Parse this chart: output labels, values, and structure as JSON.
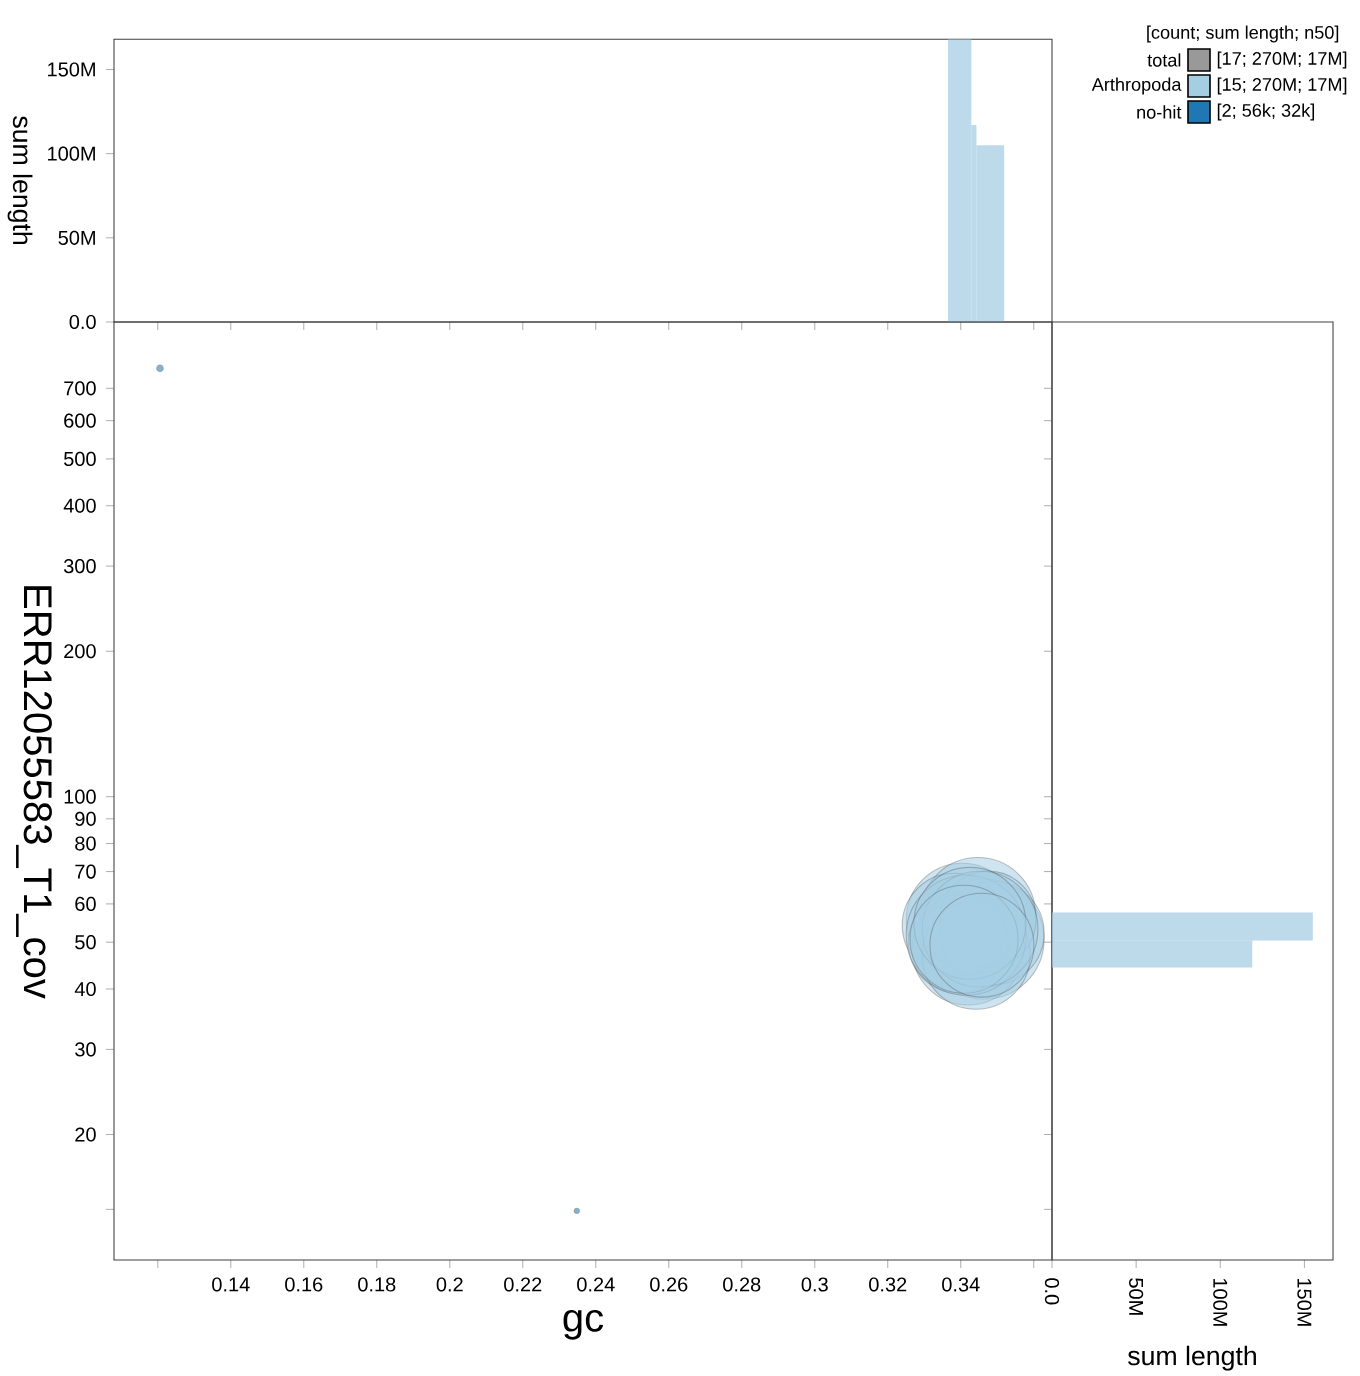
{
  "chart_data": [
    {
      "type": "histogram",
      "ylabel": "sum length",
      "bins": [
        0.3365,
        0.3429,
        0.3443,
        0.3519
      ],
      "values": [
        168000000,
        117000000,
        105000000
      ],
      "color": "#a6cee3",
      "xlim": [
        0.108,
        0.365
      ],
      "xticks": [
        0.12,
        0.14,
        0.16,
        0.18,
        0.2,
        0.22,
        0.24,
        0.26,
        0.28,
        0.3,
        0.32,
        0.34,
        0.36
      ],
      "ylim": [
        0,
        168000000
      ],
      "yticks": [
        {
          "value": 0,
          "label": "0.0"
        },
        {
          "value": 50000000,
          "label": "50M"
        },
        {
          "value": 100000000,
          "label": "100M"
        },
        {
          "value": 150000000,
          "label": "150M"
        }
      ],
      "tick_labels": "y"
    },
    {
      "type": "bubble",
      "xlabel": "gc",
      "ylabel": "ERR12055583_T1_cov",
      "log": true,
      "legend": "top right",
      "legend_title": "[count; sum length; n50]",
      "annotations": [
        "[17; 270M; 17M]",
        "[15; 270M; 17M]",
        "[2; 56k; 32k]"
      ],
      "xlim": [
        0.108,
        0.365
      ],
      "xticks": [
        {
          "value": 0.12,
          "label": null
        },
        0.14,
        0.16,
        0.18,
        0.2,
        0.22,
        0.24,
        0.26,
        0.28,
        0.3,
        0.32,
        0.34,
        {
          "value": 0.36,
          "label": null
        }
      ],
      "ylim": [
        11,
        960
      ],
      "yticks": [
        {
          "value": 14,
          "label": null
        },
        20,
        30,
        40,
        50,
        60,
        70,
        80,
        90,
        100,
        200,
        300,
        400,
        500,
        600,
        700
      ],
      "series": [
        {
          "name": "total",
          "color": "#999999"
        },
        {
          "name": "Arthropoda",
          "color": "#a6cee3",
          "x": [
            0.3404,
            0.3447,
            0.3382,
            0.3464,
            0.342,
            0.3486,
            0.3393,
            0.3442,
            0.3475,
            0.3415,
            0.3453,
            0.3425,
            0.3409,
            0.3458
          ],
          "values": [
            55.8,
            56.8,
            54.2,
            50.7,
            48.4,
            52.2,
            49.8,
            47.0,
            55.8,
            51.7,
            53.2,
            54.7,
            50.7,
            49.3
          ],
          "sizes": [
            0.87,
            0.93,
            0.75,
            1,
            0.87,
            0.75,
            0.69,
            0.81,
            0.64,
            1,
            0.93,
            0.87,
            0.81,
            0.75
          ]
        },
        {
          "name": "no-hit",
          "color": "#1f78b4",
          "x": [
            0.1206,
            0.2348
          ],
          "values": [
            770,
            13.9
          ],
          "sizes": [
            0.003,
            0.002
          ]
        }
      ]
    },
    {
      "type": "histogram",
      "orientation": "horizontal",
      "xlabel": "sum length",
      "log": "y",
      "bins": [
        44.3,
        50.4,
        57.6
      ],
      "values": [
        119000000,
        155000000
      ],
      "color": "#a6cee3",
      "xlim": [
        0,
        167000000
      ],
      "xticks": [
        {
          "value": 0,
          "label": "0.0"
        },
        {
          "value": 50000000,
          "label": "50M"
        },
        {
          "value": 100000000,
          "label": "100M"
        },
        {
          "value": 150000000,
          "label": "150M"
        }
      ],
      "ylim": [
        11,
        960
      ],
      "yticks": [
        14,
        20,
        30,
        40,
        50,
        60,
        70,
        80,
        90,
        100,
        200,
        300,
        400,
        500,
        600,
        700
      ],
      "tick_labels": "x"
    }
  ]
}
